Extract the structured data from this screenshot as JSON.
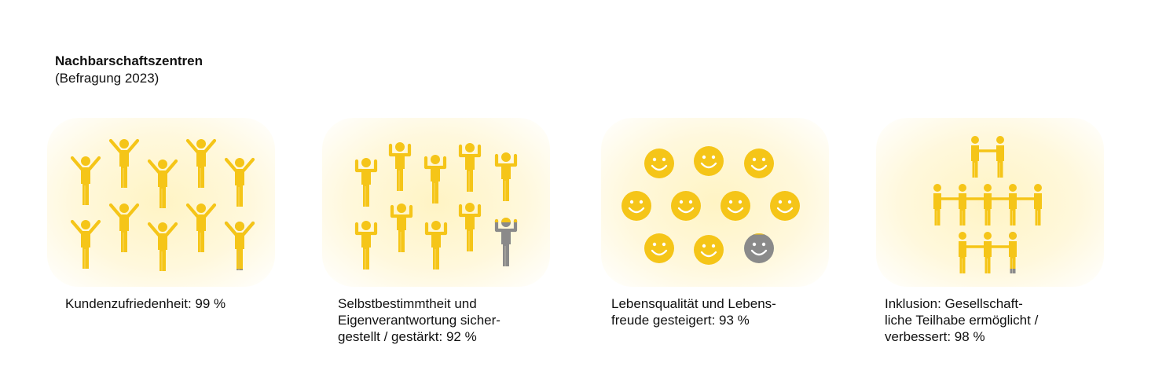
{
  "header": {
    "title": "Nachbarschaftszentren",
    "subtitle": "(Befragung 2023)"
  },
  "colors": {
    "accent": "#f5c518",
    "highlight": "#ffd84a",
    "rest": "#8a8a8a"
  },
  "chart_data": [
    {
      "type": "pictogram",
      "icon": "person-cheering-icon",
      "category_lines": [
        "Kundenzufriedenheit: 99 %"
      ],
      "value": 99,
      "unit": "%"
    },
    {
      "type": "pictogram",
      "icon": "person-strong-icon",
      "category_lines": [
        "Selbstbestimmtheit und",
        "Eigenverantwortung sicher-",
        "gestellt / gestärkt: 92 %"
      ],
      "value": 92,
      "unit": "%"
    },
    {
      "type": "pictogram",
      "icon": "smiley-face-icon",
      "category_lines": [
        "Lebensqualität und Lebens-",
        "freude gesteigert: 93 %"
      ],
      "value": 93,
      "unit": "%"
    },
    {
      "type": "pictogram",
      "icon": "people-holding-hands-icon",
      "category_lines": [
        "Inklusion: Gesellschaft-",
        "liche Teilhabe ermöglicht /",
        "verbessert: 98 %"
      ],
      "value": 98,
      "unit": "%"
    }
  ]
}
